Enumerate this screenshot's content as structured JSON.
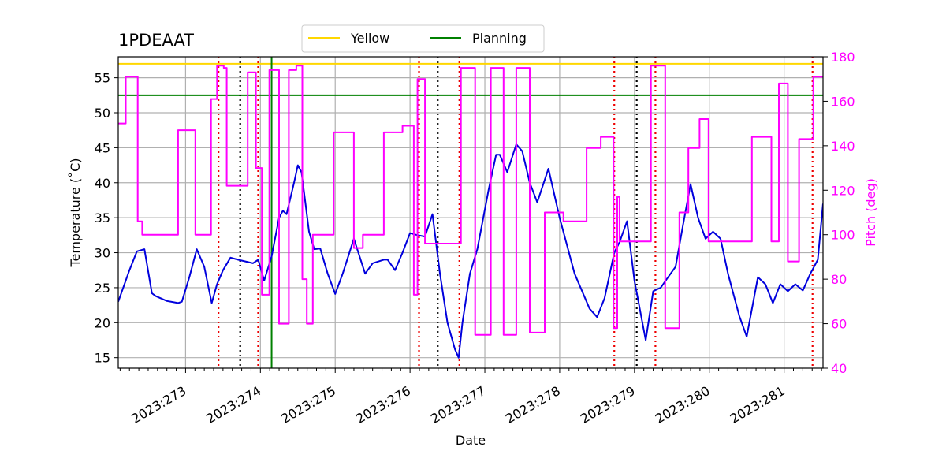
{
  "chart_data": {
    "type": "line",
    "title": "1PDEAAT",
    "xlabel": "Date",
    "ylabel_left": "Temperature ($^\\circ$C)",
    "ylabel_left_display": "Temperature (˚C)",
    "ylabel_right": "Pitch (deg)",
    "xlim": [
      272.1,
      281.52
    ],
    "ylim_left": [
      13.5,
      58.0
    ],
    "ylim_right": [
      40,
      180
    ],
    "x_ticks": [
      {
        "value": 273,
        "label": "2023:273"
      },
      {
        "value": 274,
        "label": "2023:274"
      },
      {
        "value": 275,
        "label": "2023:275"
      },
      {
        "value": 276,
        "label": "2023:276"
      },
      {
        "value": 277,
        "label": "2023:277"
      },
      {
        "value": 278,
        "label": "2023:278"
      },
      {
        "value": 279,
        "label": "2023:279"
      },
      {
        "value": 280,
        "label": "2023:280"
      },
      {
        "value": 281,
        "label": "2023:281"
      }
    ],
    "y_ticks_left": [
      15,
      20,
      25,
      30,
      35,
      40,
      45,
      50,
      55
    ],
    "y_ticks_right": [
      40,
      60,
      80,
      100,
      120,
      140,
      160,
      180
    ],
    "legend": {
      "placement": "top-center",
      "entries": [
        {
          "label": "Yellow",
          "color": "#ffd700"
        },
        {
          "label": "Planning",
          "color": "#008000"
        }
      ]
    },
    "limits": {
      "yellow": {
        "value": 57.0,
        "color": "#ffd700"
      },
      "planning": {
        "value": 52.5,
        "color": "#008000"
      }
    },
    "vlines": {
      "green_solid": [
        274.15
      ],
      "black_dotted": [
        273.73,
        276.37,
        279.03
      ],
      "red_dotted": [
        273.44,
        273.97,
        276.12,
        276.66,
        278.73,
        279.28,
        281.38
      ]
    },
    "series": [
      {
        "name": "Temperature",
        "axis": "left",
        "color": "#0000dd",
        "x": [
          272.1,
          272.25,
          272.35,
          272.45,
          272.55,
          272.6,
          272.75,
          272.9,
          272.95,
          273.05,
          273.15,
          273.25,
          273.35,
          273.42,
          273.5,
          273.6,
          273.7,
          273.9,
          273.97,
          274.05,
          274.15,
          274.25,
          274.3,
          274.35,
          274.45,
          274.5,
          274.55,
          274.65,
          274.72,
          274.8,
          274.9,
          275.0,
          275.1,
          275.25,
          275.4,
          275.5,
          275.65,
          275.7,
          275.8,
          275.9,
          276.0,
          276.1,
          276.2,
          276.3,
          276.4,
          276.5,
          276.6,
          276.65,
          276.7,
          276.8,
          276.9,
          277.05,
          277.15,
          277.2,
          277.3,
          277.42,
          277.5,
          277.6,
          277.7,
          277.85,
          278.0,
          278.2,
          278.4,
          278.5,
          278.6,
          278.73,
          278.8,
          278.9,
          279.0,
          279.15,
          279.25,
          279.35,
          279.45,
          279.55,
          279.65,
          279.75,
          279.85,
          279.95,
          280.05,
          280.15,
          280.25,
          280.4,
          280.5,
          280.65,
          280.75,
          280.85,
          280.95,
          281.05,
          281.15,
          281.25,
          281.35,
          281.45,
          281.52
        ],
        "y": [
          23.0,
          27.5,
          30.2,
          30.5,
          24.2,
          23.8,
          23.1,
          22.8,
          23.0,
          26.5,
          30.5,
          28.0,
          22.8,
          25.5,
          27.5,
          29.3,
          29.0,
          28.5,
          29.0,
          26.0,
          29.5,
          35.0,
          36.0,
          35.5,
          40.0,
          42.5,
          41.5,
          33.0,
          30.5,
          30.6,
          27.0,
          24.1,
          27.0,
          32.0,
          27.0,
          28.5,
          29.0,
          29.0,
          27.5,
          30.0,
          32.8,
          32.5,
          32.3,
          35.5,
          27.0,
          20.0,
          16.2,
          15.0,
          20.0,
          27.0,
          30.5,
          39.0,
          44.0,
          44.0,
          41.5,
          45.5,
          44.5,
          40.0,
          37.2,
          42.0,
          35.0,
          27.0,
          22.0,
          20.8,
          23.5,
          30.0,
          31.5,
          34.5,
          26.0,
          17.5,
          24.5,
          25.0,
          26.5,
          28.0,
          34.0,
          39.8,
          35.0,
          32.0,
          33.0,
          32.0,
          27.0,
          21.0,
          18.0,
          26.5,
          25.5,
          22.8,
          25.5,
          24.5,
          25.5,
          24.6,
          27.0,
          29.0,
          37.0
        ]
      },
      {
        "name": "Pitch",
        "axis": "right",
        "color": "#ff00ff",
        "x": [
          272.1,
          272.2,
          272.2,
          272.36,
          272.36,
          272.42,
          272.42,
          272.53,
          272.53,
          272.9,
          272.9,
          273.13,
          273.13,
          273.23,
          273.23,
          273.34,
          273.34,
          273.42,
          273.42,
          273.51,
          273.51,
          273.55,
          273.55,
          273.63,
          273.63,
          273.83,
          273.83,
          273.94,
          273.94,
          274.02,
          274.02,
          274.12,
          274.12,
          274.25,
          274.25,
          274.38,
          274.38,
          274.48,
          274.48,
          274.56,
          274.56,
          274.62,
          274.62,
          274.7,
          274.7,
          274.98,
          274.98,
          275.25,
          275.25,
          275.37,
          275.37,
          275.65,
          275.65,
          275.9,
          275.9,
          276.05,
          276.05,
          276.1,
          276.1,
          276.2,
          276.2,
          276.25,
          276.25,
          276.68,
          276.68,
          276.87,
          276.87,
          277.08,
          277.08,
          277.25,
          277.25,
          277.42,
          277.42,
          277.6,
          277.6,
          277.8,
          277.8,
          278.05,
          278.05,
          278.36,
          278.36,
          278.55,
          278.55,
          278.72,
          278.72,
          278.77,
          278.77,
          278.8,
          278.8,
          279.22,
          279.22,
          279.41,
          279.41,
          279.6,
          279.6,
          279.72,
          279.72,
          279.87,
          279.87,
          279.99,
          279.99,
          280.43,
          280.43,
          280.57,
          280.57,
          280.83,
          280.83,
          280.93,
          280.93,
          281.05,
          281.05,
          281.2,
          281.2,
          281.39,
          281.39,
          281.52
        ],
        "y": [
          150,
          150,
          171,
          171,
          106,
          106,
          100,
          100,
          100,
          100,
          147,
          147,
          100,
          100,
          100,
          100,
          161,
          161,
          176,
          176,
          175,
          175,
          122,
          122,
          122,
          122,
          173,
          173,
          130,
          130,
          73,
          73,
          174,
          174,
          60,
          60,
          174,
          174,
          176,
          176,
          80,
          80,
          60,
          60,
          100,
          100,
          146,
          146,
          94,
          94,
          100,
          100,
          146,
          146,
          149,
          149,
          73,
          73,
          170,
          170,
          96,
          96,
          96,
          96,
          175,
          175,
          55,
          55,
          175,
          175,
          55,
          55,
          175,
          175,
          56,
          56,
          110,
          110,
          106,
          106,
          139,
          139,
          144,
          144,
          58,
          58,
          117,
          117,
          97,
          97,
          176,
          176,
          58,
          58,
          110,
          110,
          139,
          139,
          152,
          152,
          97,
          97,
          97,
          97,
          144,
          144,
          97,
          97,
          168,
          168,
          88,
          88,
          143,
          143,
          171,
          171
        ]
      }
    ]
  }
}
